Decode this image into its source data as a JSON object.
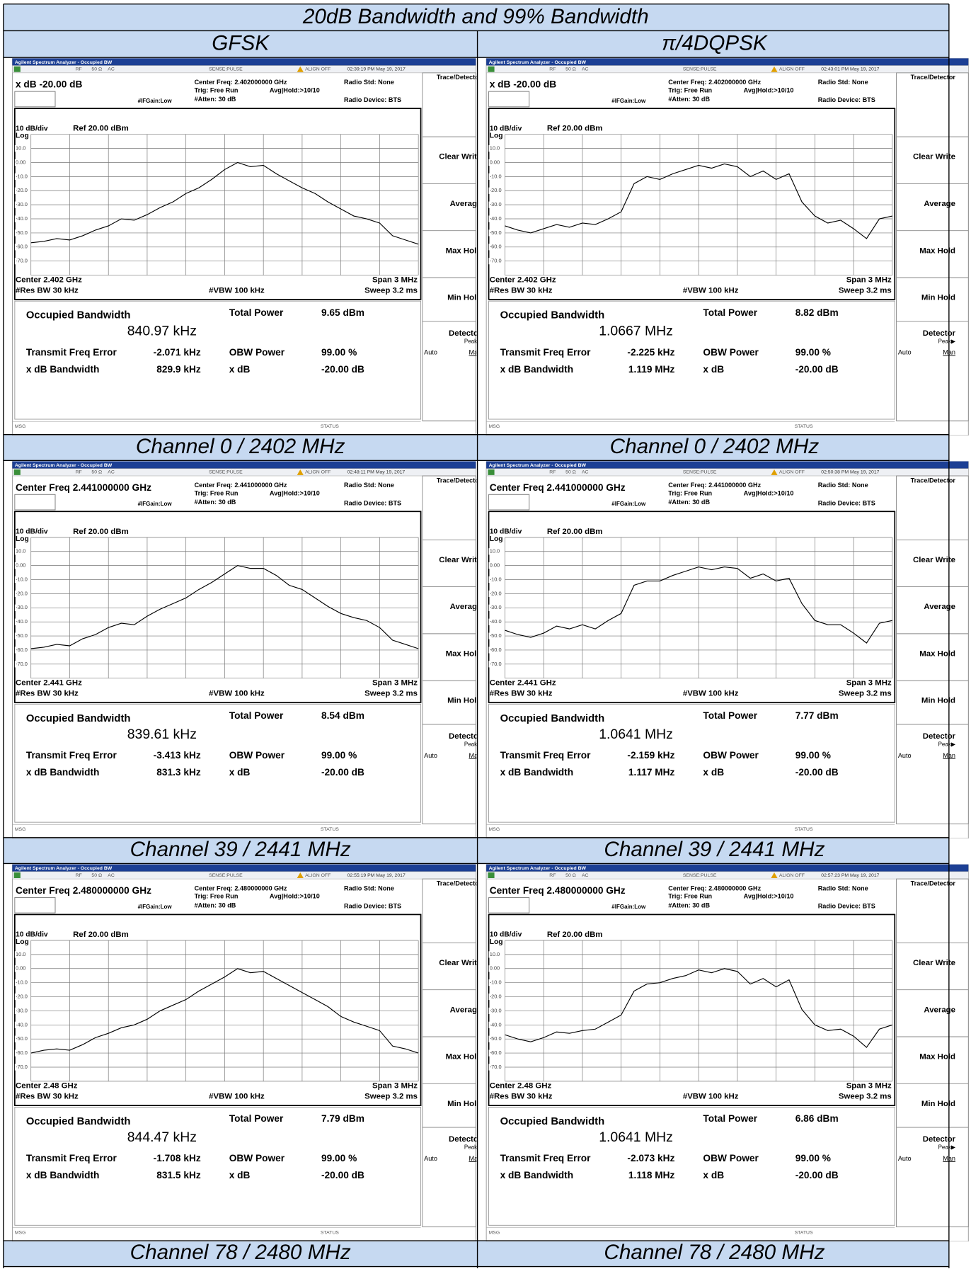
{
  "title": "20dB Bandwidth and 99% Bandwidth",
  "columns": [
    "GFSK",
    "π/4DQPSK"
  ],
  "analyzer": {
    "app_title": "Agilent Spectrum Analyzer - Occupied BW",
    "rf": "RF",
    "impedance": "50 Ω",
    "coupling": "AC",
    "sense": "SENSE:PULSE",
    "align": "ALIGN OFF",
    "trig": "Trig: Free Run",
    "avg": "Avg|Hold:>10/10",
    "ifgain": "#IFGain:Low",
    "atten": "#Atten: 30 dB",
    "radio_std": "Radio Std: None",
    "radio_device": "Radio Device: BTS",
    "scale": "10 dB/div",
    "ref": "Ref 20.00 dBm",
    "log": "Log",
    "trace_ylim": [
      -80,
      20
    ],
    "y_labels": [
      "10.0",
      "0.00",
      "-10.0",
      "-20.0",
      "-30.0",
      "-40.0",
      "-50.0",
      "-60.0",
      "-70.0"
    ],
    "span": "Span 3 MHz",
    "res_bw": "#Res BW 30 kHz",
    "vbw": "#VBW 100 kHz",
    "sweep": "Sweep 3.2 ms",
    "labels": {
      "obw": "Occupied Bandwidth",
      "total_power": "Total Power",
      "tfe": "Transmit Freq Error",
      "obw_power": "OBW Power",
      "xdb_bw": "x dB Bandwidth",
      "xdb": "x dB"
    },
    "softkeys": [
      "Trace/Detector",
      "Clear Write",
      "Average",
      "Max Hold",
      "Min Hold",
      "Detector"
    ],
    "peak": "Peak▶",
    "auto": "Auto",
    "man": "Man",
    "msg": "MSG",
    "status": "STATUS"
  },
  "panels": [
    {
      "caption": "Channel 0 / 2402 MHz",
      "timestamp": "02:39:19 PM May 19, 2017",
      "header": "x dB -20.00 dB",
      "center_freq": "Center Freq: 2.402000000 GHz",
      "center": "Center 2.402 GHz",
      "obw": "840.97 kHz",
      "total_power": "9.65 dBm",
      "tfe": "-2.071 kHz",
      "obw_power": "99.00 %",
      "xdb_bw": "829.9 kHz",
      "xdb": "-20.00 dB",
      "trace": [
        -57,
        -56,
        -54,
        -55,
        -52,
        -48,
        -45,
        -40,
        -41,
        -37,
        -32,
        -28,
        -22,
        -18,
        -12,
        -5,
        0,
        -3,
        -2,
        -8,
        -13,
        -18,
        -22,
        -28,
        -33,
        -38,
        -40,
        -43,
        -52,
        -55,
        -58
      ]
    },
    {
      "caption": "Channel 0 / 2402 MHz",
      "timestamp": "02:43:01 PM May 19, 2017",
      "header": "x dB -20.00 dB",
      "center_freq": "Center Freq: 2.402000000 GHz",
      "center": "Center 2.402 GHz",
      "obw": "1.0667 MHz",
      "total_power": "8.82 dBm",
      "tfe": "-2.225 kHz",
      "obw_power": "99.00 %",
      "xdb_bw": "1.119 MHz",
      "xdb": "-20.00 dB",
      "trace": [
        -45,
        -48,
        -50,
        -47,
        -44,
        -46,
        -43,
        -44,
        -40,
        -35,
        -15,
        -10,
        -12,
        -8,
        -5,
        -2,
        -4,
        -1,
        -3,
        -10,
        -6,
        -12,
        -8,
        -28,
        -38,
        -43,
        -41,
        -47,
        -54,
        -40,
        -38
      ]
    },
    {
      "caption": "Channel 39 / 2441 MHz",
      "timestamp": "02:48:11 PM May 19, 2017",
      "header": "Center Freq 2.441000000 GHz",
      "center_freq": "Center Freq: 2.441000000 GHz",
      "center": "Center 2.441 GHz",
      "obw": "839.61 kHz",
      "total_power": "8.54 dBm",
      "tfe": "-3.413 kHz",
      "obw_power": "99.00 %",
      "xdb_bw": "831.3 kHz",
      "xdb": "-20.00 dB",
      "trace": [
        -59,
        -58,
        -56,
        -57,
        -52,
        -49,
        -44,
        -41,
        -42,
        -36,
        -31,
        -27,
        -23,
        -17,
        -12,
        -6,
        0,
        -2,
        -2,
        -7,
        -14,
        -17,
        -23,
        -29,
        -34,
        -37,
        -39,
        -44,
        -53,
        -56,
        -59
      ]
    },
    {
      "caption": "Channel 39 / 2441 MHz",
      "timestamp": "02:50:38 PM May 19, 2017",
      "header": "Center Freq 2.441000000 GHz",
      "center_freq": "Center Freq: 2.441000000 GHz",
      "center": "Center 2.441 GHz",
      "obw": "1.0641 MHz",
      "total_power": "7.77 dBm",
      "tfe": "-2.159 kHz",
      "obw_power": "99.00 %",
      "xdb_bw": "1.117 MHz",
      "xdb": "-20.00 dB",
      "trace": [
        -46,
        -49,
        -51,
        -48,
        -43,
        -45,
        -42,
        -45,
        -39,
        -34,
        -14,
        -11,
        -11,
        -7,
        -4,
        -1,
        -3,
        -1,
        -2,
        -9,
        -6,
        -11,
        -9,
        -27,
        -39,
        -42,
        -42,
        -48,
        -55,
        -41,
        -39
      ]
    },
    {
      "caption": "Channel 78 / 2480 MHz",
      "timestamp": "02:55:19 PM May 19, 2017",
      "header": "Center Freq 2.480000000 GHz",
      "center_freq": "Center Freq: 2.480000000 GHz",
      "center": "Center 2.48 GHz",
      "obw": "844.47 kHz",
      "total_power": "7.79 dBm",
      "tfe": "-1.708 kHz",
      "obw_power": "99.00 %",
      "xdb_bw": "831.5 kHz",
      "xdb": "-20.00 dB",
      "trace": [
        -60,
        -58,
        -57,
        -58,
        -54,
        -49,
        -46,
        -42,
        -40,
        -36,
        -30,
        -26,
        -22,
        -16,
        -11,
        -6,
        0,
        -3,
        -2,
        -7,
        -12,
        -17,
        -22,
        -27,
        -34,
        -38,
        -41,
        -44,
        -55,
        -57,
        -60
      ]
    },
    {
      "caption": "Channel 78 / 2480 MHz",
      "timestamp": "02:57:23 PM May 19, 2017",
      "header": "Center Freq 2.480000000 GHz",
      "center_freq": "Center Freq: 2.480000000 GHz",
      "center": "Center 2.48 GHz",
      "obw": "1.0641 MHz",
      "total_power": "6.86 dBm",
      "tfe": "-2.073 kHz",
      "obw_power": "99.00 %",
      "xdb_bw": "1.118 MHz",
      "xdb": "-20.00 dB",
      "trace": [
        -47,
        -50,
        -52,
        -49,
        -45,
        -46,
        -44,
        -43,
        -38,
        -33,
        -16,
        -11,
        -10,
        -7,
        -5,
        -1,
        -3,
        0,
        -2,
        -11,
        -7,
        -13,
        -8,
        -29,
        -40,
        -44,
        -43,
        -48,
        -56,
        -43,
        -40
      ]
    }
  ]
}
